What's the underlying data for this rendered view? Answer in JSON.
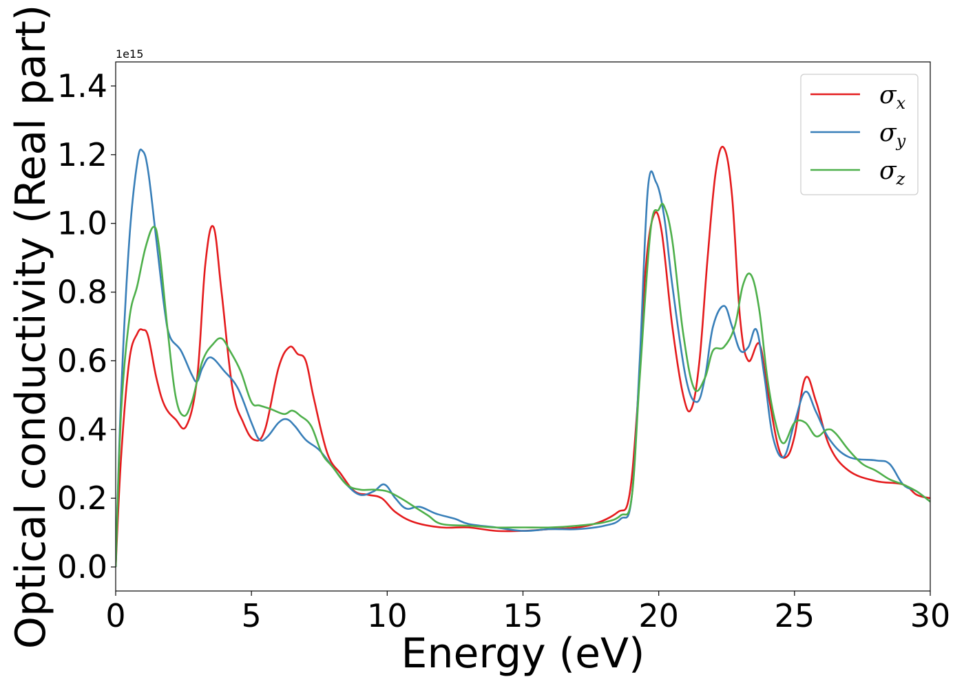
{
  "chart_data": {
    "type": "line",
    "xlabel": "Energy (eV)",
    "ylabel": "Optical conductivity (Real part)",
    "y_offset_text": "1e15",
    "xlim": [
      0,
      30
    ],
    "ylim": [
      -0.07,
      1.47
    ],
    "y_scale_factor": 1000000000000000.0,
    "x_ticks": [
      0,
      5,
      10,
      15,
      20,
      25,
      30
    ],
    "x_tick_labels": [
      "0",
      "5",
      "10",
      "15",
      "20",
      "25",
      "30"
    ],
    "y_ticks": [
      0.0,
      0.2,
      0.4,
      0.6,
      0.8,
      1.0,
      1.2,
      1.4
    ],
    "y_tick_labels": [
      "0.0",
      "0.2",
      "0.4",
      "0.6",
      "0.8",
      "1.0",
      "1.2",
      "1.4"
    ],
    "grid": false,
    "legend_position": "top-right",
    "series": [
      {
        "name": "σx",
        "symbol": "σ",
        "subscript": "x",
        "color": "#e41a1c",
        "x": [
          0,
          0.2,
          0.5,
          0.8,
          1.0,
          1.2,
          1.5,
          1.8,
          2.2,
          2.6,
          3.0,
          3.3,
          3.6,
          3.9,
          4.3,
          4.7,
          5.1,
          5.5,
          6.0,
          6.4,
          6.7,
          7.0,
          7.3,
          7.8,
          8.3,
          8.8,
          9.3,
          9.8,
          10.3,
          11.0,
          12.0,
          13.0,
          14.0,
          15.0,
          16.0,
          17.0,
          17.8,
          18.5,
          18.9,
          19.2,
          19.5,
          19.8,
          20.1,
          20.5,
          20.9,
          21.2,
          21.5,
          21.8,
          22.1,
          22.4,
          22.7,
          23.0,
          23.3,
          23.7,
          24.0,
          24.4,
          24.7,
          25.0,
          25.4,
          25.8,
          26.3,
          27.0,
          28.0,
          29.0,
          29.5,
          30.0
        ],
        "values": [
          0.0,
          0.32,
          0.6,
          0.68,
          0.69,
          0.67,
          0.55,
          0.47,
          0.43,
          0.41,
          0.55,
          0.88,
          0.99,
          0.8,
          0.52,
          0.42,
          0.37,
          0.4,
          0.58,
          0.64,
          0.62,
          0.6,
          0.49,
          0.33,
          0.27,
          0.22,
          0.21,
          0.2,
          0.16,
          0.13,
          0.115,
          0.115,
          0.105,
          0.105,
          0.11,
          0.115,
          0.13,
          0.16,
          0.2,
          0.45,
          0.85,
          1.02,
          0.98,
          0.7,
          0.5,
          0.46,
          0.6,
          0.9,
          1.15,
          1.22,
          1.08,
          0.72,
          0.6,
          0.65,
          0.52,
          0.35,
          0.32,
          0.38,
          0.55,
          0.48,
          0.35,
          0.28,
          0.25,
          0.24,
          0.21,
          0.2
        ]
      },
      {
        "name": "σy",
        "symbol": "σ",
        "subscript": "y",
        "color": "#377eb8",
        "x": [
          0,
          0.2,
          0.5,
          0.8,
          1.0,
          1.2,
          1.5,
          1.8,
          2.0,
          2.4,
          2.8,
          3.0,
          3.2,
          3.5,
          4.0,
          4.5,
          5.0,
          5.3,
          5.6,
          6.0,
          6.3,
          6.6,
          7.0,
          7.5,
          8.0,
          8.5,
          9.0,
          9.5,
          9.9,
          10.3,
          10.7,
          11.2,
          11.8,
          12.5,
          13.0,
          14.0,
          15.0,
          16.0,
          17.0,
          18.0,
          18.6,
          19.0,
          19.3,
          19.6,
          19.9,
          20.2,
          20.5,
          21.0,
          21.4,
          21.7,
          22.0,
          22.4,
          22.7,
          23.0,
          23.3,
          23.6,
          23.9,
          24.2,
          24.6,
          25.0,
          25.4,
          25.8,
          26.3,
          27.0,
          28.0,
          28.5,
          29.0,
          29.5,
          30.0
        ],
        "values": [
          0.0,
          0.5,
          0.95,
          1.18,
          1.21,
          1.15,
          0.95,
          0.75,
          0.67,
          0.63,
          0.56,
          0.54,
          0.58,
          0.61,
          0.57,
          0.52,
          0.42,
          0.37,
          0.38,
          0.42,
          0.43,
          0.41,
          0.37,
          0.34,
          0.29,
          0.24,
          0.21,
          0.22,
          0.24,
          0.2,
          0.17,
          0.175,
          0.155,
          0.14,
          0.125,
          0.115,
          0.105,
          0.11,
          0.11,
          0.12,
          0.14,
          0.2,
          0.6,
          1.1,
          1.12,
          1.02,
          0.82,
          0.55,
          0.48,
          0.55,
          0.7,
          0.76,
          0.7,
          0.63,
          0.64,
          0.69,
          0.55,
          0.38,
          0.32,
          0.42,
          0.51,
          0.45,
          0.37,
          0.32,
          0.31,
          0.3,
          0.24,
          0.22,
          0.19
        ]
      },
      {
        "name": "σz",
        "symbol": "σ",
        "subscript": "z",
        "color": "#4daf4a",
        "x": [
          0,
          0.2,
          0.5,
          0.8,
          1.1,
          1.4,
          1.6,
          1.9,
          2.2,
          2.5,
          2.8,
          3.2,
          3.6,
          3.9,
          4.2,
          4.6,
          5.0,
          5.3,
          5.7,
          6.2,
          6.5,
          6.8,
          7.2,
          7.6,
          8.0,
          8.5,
          9.0,
          9.5,
          10.0,
          10.5,
          11.0,
          11.5,
          12.0,
          13.0,
          14.0,
          15.0,
          16.0,
          17.0,
          18.0,
          18.6,
          19.0,
          19.3,
          19.7,
          20.0,
          20.2,
          20.5,
          20.9,
          21.3,
          21.7,
          22.0,
          22.4,
          22.8,
          23.1,
          23.4,
          23.7,
          24.0,
          24.3,
          24.6,
          25.0,
          25.4,
          25.8,
          26.2,
          26.5,
          27.0,
          27.5,
          28.0,
          28.5,
          29.0,
          29.5,
          30.0
        ],
        "values": [
          0.0,
          0.45,
          0.72,
          0.82,
          0.93,
          0.99,
          0.93,
          0.7,
          0.5,
          0.44,
          0.48,
          0.6,
          0.65,
          0.665,
          0.63,
          0.57,
          0.48,
          0.47,
          0.46,
          0.445,
          0.455,
          0.44,
          0.41,
          0.33,
          0.29,
          0.24,
          0.225,
          0.225,
          0.22,
          0.2,
          0.175,
          0.15,
          0.125,
          0.12,
          0.115,
          0.115,
          0.115,
          0.12,
          0.13,
          0.15,
          0.2,
          0.55,
          0.98,
          1.04,
          1.05,
          0.95,
          0.68,
          0.52,
          0.55,
          0.63,
          0.64,
          0.7,
          0.82,
          0.85,
          0.75,
          0.55,
          0.42,
          0.36,
          0.42,
          0.42,
          0.38,
          0.4,
          0.39,
          0.34,
          0.3,
          0.28,
          0.255,
          0.24,
          0.22,
          0.19
        ]
      }
    ]
  }
}
